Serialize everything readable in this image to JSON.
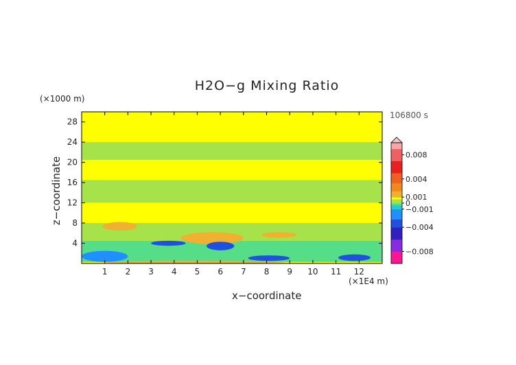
{
  "chart_data": {
    "type": "heatmap",
    "title": "H2O−g Mixing Ratio",
    "xlabel": "x−coordinate",
    "ylabel": "z−coordinate",
    "x_unit": "(×1E4 m)",
    "y_unit": "(×1000 m)",
    "time_label": "106800 s",
    "xlim": [
      0,
      13
    ],
    "ylim": [
      0,
      30
    ],
    "x_ticks": [
      "1",
      "2",
      "3",
      "4",
      "5",
      "6",
      "7",
      "8",
      "9",
      "10",
      "11",
      "12"
    ],
    "y_ticks": [
      "4",
      "8",
      "12",
      "16",
      "20",
      "24",
      "28"
    ],
    "colorbar": {
      "ticks": [
        "0.008",
        "0.004",
        "0.001",
        "0",
        "−0.001",
        "−0.004",
        "−0.008"
      ],
      "tick_values": [
        0.008,
        0.004,
        0.001,
        0,
        -0.001,
        -0.004,
        -0.008
      ],
      "range": [
        -0.01,
        0.01
      ]
    },
    "regions": [
      {
        "value": -0.0005,
        "x": [
          0,
          13
        ],
        "z": [
          0.3,
          4.5
        ]
      },
      {
        "value": -0.002,
        "x": [
          0,
          2
        ],
        "z": [
          0.3,
          2.5
        ]
      },
      {
        "value": -0.004,
        "x": [
          3,
          4.5
        ],
        "z": [
          3.5,
          4.5
        ]
      },
      {
        "value": -0.004,
        "x": [
          5.4,
          6.6
        ],
        "z": [
          2.6,
          4.3
        ]
      },
      {
        "value": -0.003,
        "x": [
          7.2,
          9
        ],
        "z": [
          0.5,
          1.6
        ]
      },
      {
        "value": -0.003,
        "x": [
          11.1,
          12.5
        ],
        "z": [
          0.5,
          1.8
        ]
      },
      {
        "value": 0.0012,
        "x": [
          4.3,
          7
        ],
        "z": [
          3.8,
          6.2
        ]
      },
      {
        "value": 0.0012,
        "x": [
          0.9,
          2.4
        ],
        "z": [
          6.5,
          8.2
        ]
      },
      {
        "value": 0.0012,
        "x": [
          7.8,
          9.3
        ],
        "z": [
          5.1,
          6.2
        ]
      },
      {
        "value": 0.0012,
        "x": [
          0.9,
          8.8
        ],
        "z": [
          0,
          0.5
        ]
      },
      {
        "value": 0.0003,
        "x": [
          0,
          13
        ],
        "z": [
          4.5,
          8
        ]
      },
      {
        "value": 0.0003,
        "x": [
          0,
          13
        ],
        "z": [
          12,
          16.5
        ]
      },
      {
        "value": 0.0003,
        "x": [
          0,
          13
        ],
        "z": [
          20.5,
          24
        ]
      },
      {
        "value": 0.0006,
        "x": [
          0,
          13
        ],
        "z": [
          26,
          30
        ]
      },
      {
        "value": 0.0006,
        "x": [
          0,
          13
        ],
        "z": [
          9,
          12
        ]
      },
      {
        "value": 0.0006,
        "x": [
          0,
          13
        ],
        "z": [
          17,
          19.5
        ]
      }
    ]
  }
}
